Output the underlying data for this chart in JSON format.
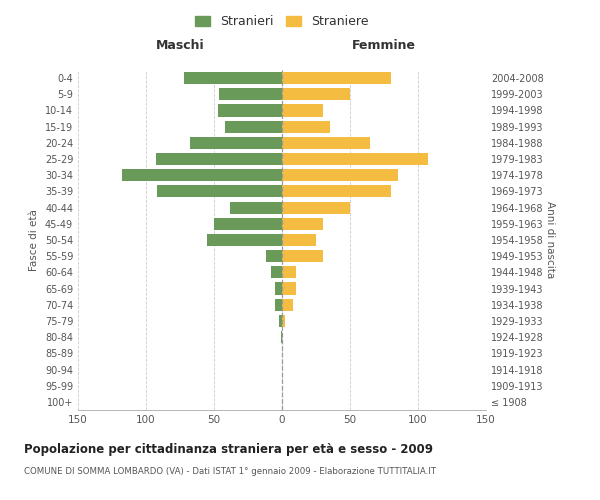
{
  "age_groups": [
    "100+",
    "95-99",
    "90-94",
    "85-89",
    "80-84",
    "75-79",
    "70-74",
    "65-69",
    "60-64",
    "55-59",
    "50-54",
    "45-49",
    "40-44",
    "35-39",
    "30-34",
    "25-29",
    "20-24",
    "15-19",
    "10-14",
    "5-9",
    "0-4"
  ],
  "birth_years": [
    "≤ 1908",
    "1909-1913",
    "1914-1918",
    "1919-1923",
    "1924-1928",
    "1929-1933",
    "1934-1938",
    "1939-1943",
    "1944-1948",
    "1949-1953",
    "1954-1958",
    "1959-1963",
    "1964-1968",
    "1969-1973",
    "1974-1978",
    "1979-1983",
    "1984-1988",
    "1989-1993",
    "1994-1998",
    "1999-2003",
    "2004-2008"
  ],
  "maschi": [
    0,
    0,
    0,
    0,
    1,
    2,
    5,
    5,
    8,
    12,
    55,
    50,
    38,
    92,
    118,
    93,
    68,
    42,
    47,
    46,
    72
  ],
  "femmine": [
    0,
    0,
    0,
    0,
    0,
    2,
    8,
    10,
    10,
    30,
    25,
    30,
    50,
    80,
    85,
    107,
    65,
    35,
    30,
    50,
    80
  ],
  "maschi_color": "#6a9a5a",
  "femmine_color": "#f5bc42",
  "title": "Popolazione per cittadinanza straniera per età e sesso - 2009",
  "subtitle": "COMUNE DI SOMMA LOMBARDO (VA) - Dati ISTAT 1° gennaio 2009 - Elaborazione TUTTITALIA.IT",
  "ylabel_left": "Fasce di età",
  "ylabel_right": "Anni di nascita",
  "header_left": "Maschi",
  "header_right": "Femmine",
  "legend_stranieri": "Stranieri",
  "legend_straniere": "Straniere",
  "xlim": 150,
  "background_color": "#ffffff",
  "grid_color": "#cccccc"
}
